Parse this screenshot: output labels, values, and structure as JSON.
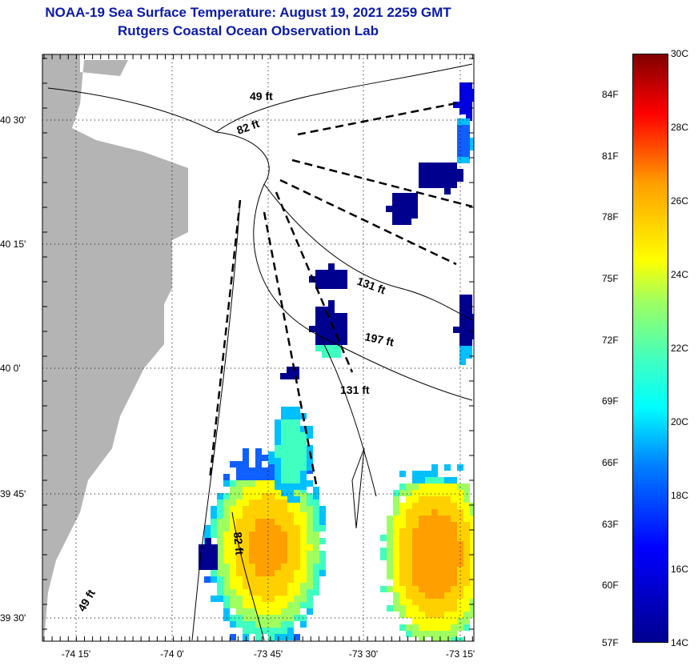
{
  "title": "NOAA-19 Sea Surface Temperature:  August 19, 2021 2259 GMT",
  "subtitle": "Rutgers Coastal Ocean Observation Lab",
  "map": {
    "lon_ticks": [
      "-74 15'",
      "-74 0'",
      "-73 45'",
      "-73 30'",
      "-73 15'"
    ],
    "lat_ticks": [
      "40 30'",
      "40 15'",
      "40 0'",
      "39 45'",
      "39 30'"
    ],
    "contour_labels": [
      "49 ft",
      "82 ft",
      "131 ft",
      "197 ft",
      "131 ft",
      "82 ft",
      "49 ft"
    ]
  },
  "colorbar": {
    "fahrenheit": [
      "84F",
      "81F",
      "78F",
      "75F",
      "72F",
      "69F",
      "66F",
      "63F",
      "60F",
      "57F"
    ],
    "celsius": [
      "30C",
      "28C",
      "26C",
      "24C",
      "22C",
      "20C",
      "18C",
      "16C",
      "14C"
    ],
    "colors": {
      "min": "#00008f",
      "mid": "#ffff00",
      "max": "#800000"
    }
  }
}
